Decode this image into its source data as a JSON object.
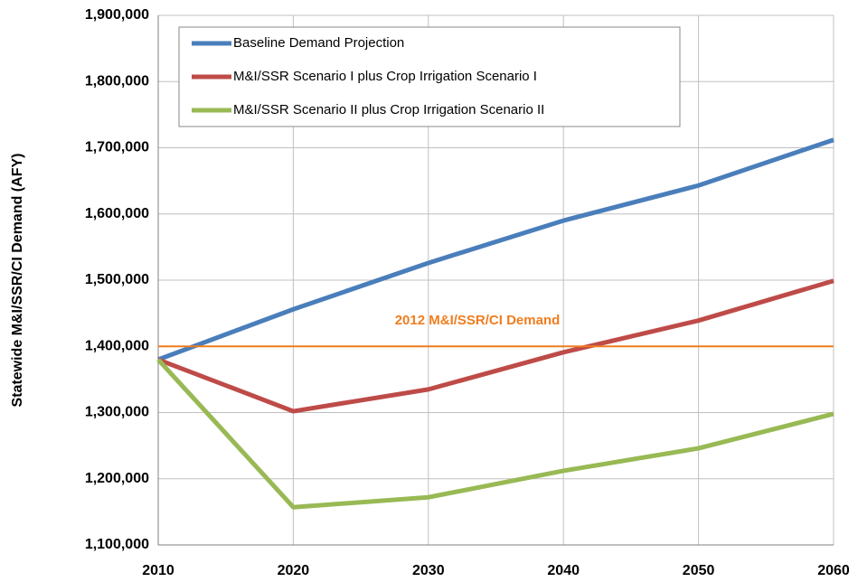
{
  "chart_data": {
    "type": "line",
    "y_label": "Statewide M&I/SSR/CI Demand (AFY)",
    "x": [
      2010,
      2020,
      2030,
      2040,
      2050,
      2060
    ],
    "series": [
      {
        "name": "Baseline Demand Projection",
        "color": "#4a7ebb",
        "values": [
          1380000,
          1456000,
          1526000,
          1590000,
          1643000,
          1712000
        ]
      },
      {
        "name": "M&I/SSR Scenario I plus Crop Irrigation Scenario I",
        "color": "#be4b48",
        "values": [
          1380000,
          1302000,
          1335000,
          1391000,
          1439000,
          1499000
        ]
      },
      {
        "name": "M&I/SSR Scenario II plus Crop Irrigation Scenario II",
        "color": "#98b954",
        "values": [
          1380000,
          1157000,
          1172000,
          1212000,
          1246000,
          1298000
        ]
      }
    ],
    "reference_line": {
      "value": 1400000,
      "label": "2012 M&I/SSR/CI Demand",
      "color": "#f07d1f"
    },
    "xlim": [
      2010,
      2060
    ],
    "xticks": [
      2010,
      2020,
      2030,
      2040,
      2050,
      2060
    ],
    "ylim": [
      1100000,
      1900000
    ],
    "yticks": [
      {
        "value": 1100000,
        "label": "1,100,000"
      },
      {
        "value": 1200000,
        "label": "1,200,000"
      },
      {
        "value": 1300000,
        "label": "1,300,000"
      },
      {
        "value": 1400000,
        "label": "1,400,000"
      },
      {
        "value": 1500000,
        "label": "1,500,000"
      },
      {
        "value": 1600000,
        "label": "1,600,000"
      },
      {
        "value": 1700000,
        "label": "1,700,000"
      },
      {
        "value": 1800000,
        "label": "1,800,000"
      },
      {
        "value": 1900000,
        "label": "1,900,000"
      }
    ],
    "grid": true,
    "legend": "upper left"
  }
}
